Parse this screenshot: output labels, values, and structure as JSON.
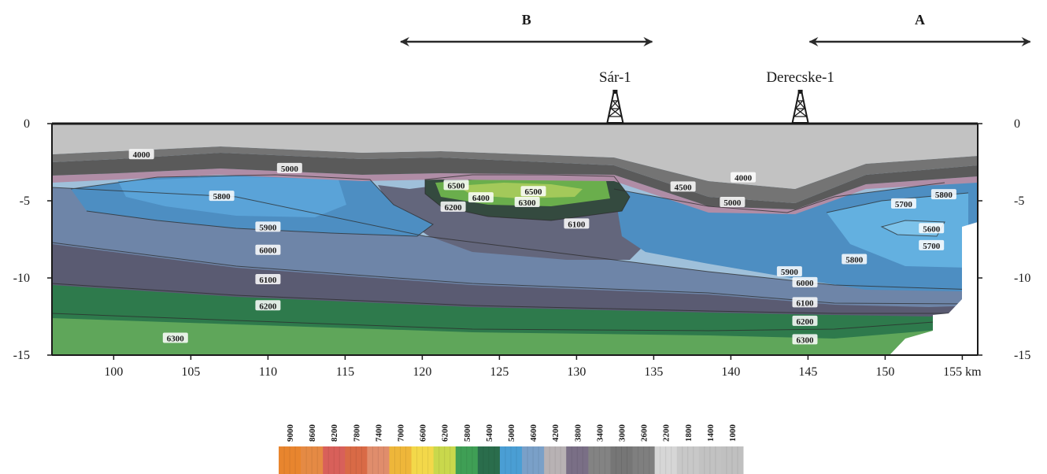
{
  "chart_data": {
    "type": "heatmap",
    "title": "",
    "xlabel": "km",
    "ylabel": "",
    "xlim": [
      96,
      156
    ],
    "ylim": [
      -15,
      0
    ],
    "x_ticks": [
      {
        "value": 100,
        "label": "100"
      },
      {
        "value": 105,
        "label": "105"
      },
      {
        "value": 110,
        "label": "110"
      },
      {
        "value": 115,
        "label": "115"
      },
      {
        "value": 120,
        "label": "120"
      },
      {
        "value": 125,
        "label": "125"
      },
      {
        "value": 130,
        "label": "130"
      },
      {
        "value": 135,
        "label": "135"
      },
      {
        "value": 140,
        "label": "140"
      },
      {
        "value": 145,
        "label": "145"
      },
      {
        "value": 150,
        "label": "150"
      },
      {
        "value": 155,
        "label": "155 km"
      }
    ],
    "y_ticks": [
      {
        "value": 0,
        "label": "0"
      },
      {
        "value": -5,
        "label": "-5"
      },
      {
        "value": -10,
        "label": "-10"
      },
      {
        "value": -15,
        "label": "-15"
      }
    ],
    "sections": [
      {
        "label": "B",
        "x_start": 118.5,
        "x_end": 135
      },
      {
        "label": "A",
        "x_start": 145,
        "x_end": 159.5
      }
    ],
    "wells": [
      {
        "name": "Sár-1",
        "x": 132.5
      },
      {
        "name": "Derecske-1",
        "x": 144.5
      }
    ],
    "contour_labels": [
      {
        "text": "4000",
        "x": 101.8,
        "y": -2.0
      },
      {
        "text": "5000",
        "x": 111.4,
        "y": -2.9
      },
      {
        "text": "5800",
        "x": 107.0,
        "y": -4.7
      },
      {
        "text": "5900",
        "x": 110.0,
        "y": -6.7
      },
      {
        "text": "6000",
        "x": 110.0,
        "y": -8.2
      },
      {
        "text": "6100",
        "x": 110.0,
        "y": -10.1
      },
      {
        "text": "6200",
        "x": 110.0,
        "y": -11.8
      },
      {
        "text": "6300",
        "x": 104.0,
        "y": -13.9
      },
      {
        "text": "6500",
        "x": 122.2,
        "y": -4.0
      },
      {
        "text": "6400",
        "x": 123.8,
        "y": -4.8
      },
      {
        "text": "6500",
        "x": 127.2,
        "y": -4.4
      },
      {
        "text": "6300",
        "x": 126.8,
        "y": -5.1
      },
      {
        "text": "6200",
        "x": 122.0,
        "y": -5.4
      },
      {
        "text": "6100",
        "x": 130.0,
        "y": -6.5
      },
      {
        "text": "4000",
        "x": 140.8,
        "y": -3.5
      },
      {
        "text": "4500",
        "x": 136.9,
        "y": -4.1
      },
      {
        "text": "5000",
        "x": 140.1,
        "y": -5.1
      },
      {
        "text": "5800",
        "x": 153.8,
        "y": -4.6
      },
      {
        "text": "5700",
        "x": 151.2,
        "y": -5.2
      },
      {
        "text": "5600",
        "x": 153.0,
        "y": -6.8
      },
      {
        "text": "5700",
        "x": 153.0,
        "y": -7.9
      },
      {
        "text": "5800",
        "x": 148.0,
        "y": -8.8
      },
      {
        "text": "5900",
        "x": 143.8,
        "y": -9.6
      },
      {
        "text": "6000",
        "x": 144.8,
        "y": -10.3
      },
      {
        "text": "6100",
        "x": 144.8,
        "y": -11.6
      },
      {
        "text": "6200",
        "x": 144.8,
        "y": -12.8
      },
      {
        "text": "6300",
        "x": 144.8,
        "y": -14.0
      }
    ],
    "colorbar": {
      "labels": [
        "9000",
        "8600",
        "8200",
        "7800",
        "7400",
        "7000",
        "6600",
        "6200",
        "5800",
        "5400",
        "5000",
        "4600",
        "4200",
        "3800",
        "3400",
        "3000",
        "2600",
        "2200",
        "1800",
        "1400",
        "1000"
      ],
      "colors": [
        "#e8852e",
        "#e58a44",
        "#d8605a",
        "#d96a46",
        "#e08d6c",
        "#eeb63a",
        "#f3d84a",
        "#c9d84c",
        "#3f9f55",
        "#2a6d4c",
        "#4a9ed4",
        "#7aa0c8",
        "#b8b2b4",
        "#7a6f86",
        "#838383",
        "#767676",
        "#7f7f7f",
        "#d6d6d6",
        "#c8c8c8",
        "#c2c2c2",
        "#c0c0c0"
      ]
    }
  }
}
